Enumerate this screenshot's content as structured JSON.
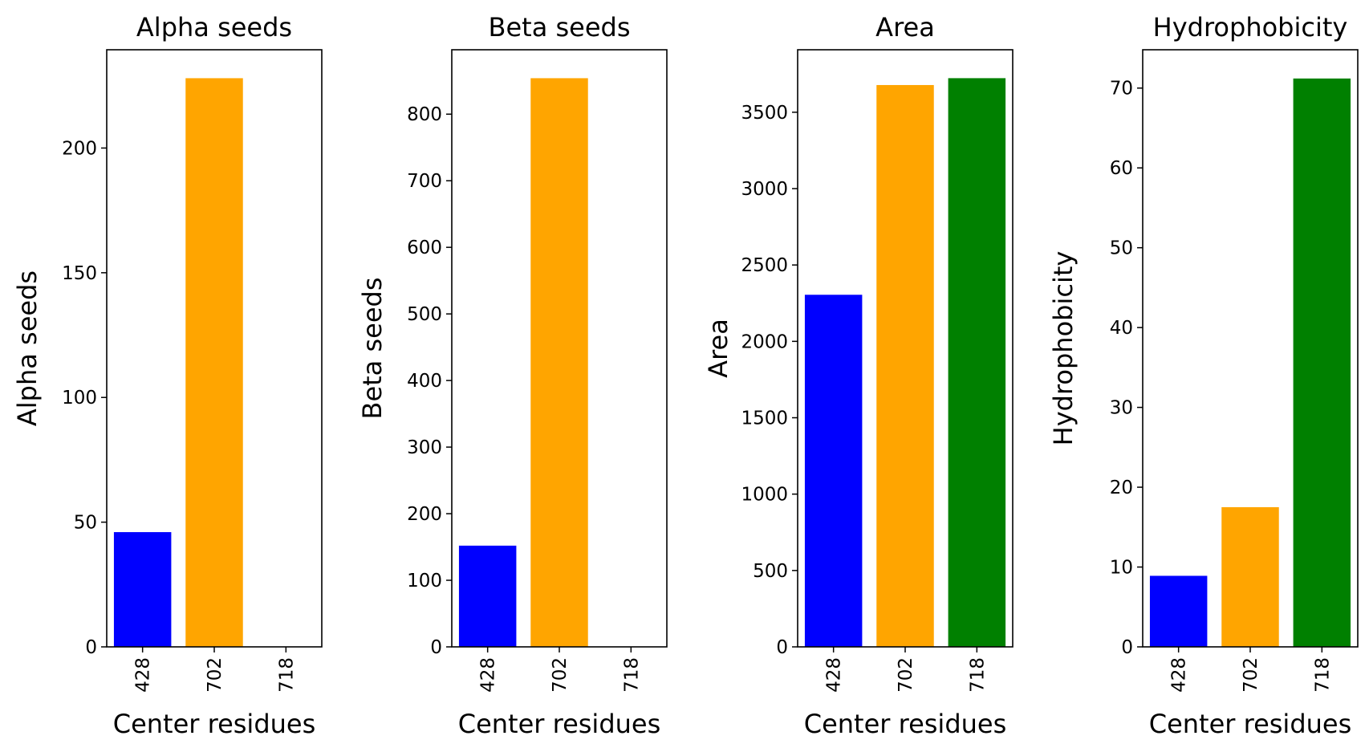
{
  "chart_data": [
    {
      "type": "bar",
      "title": "Alpha seeds",
      "xlabel": "Center residues",
      "ylabel": "Alpha seeds",
      "categories": [
        "428",
        "702",
        "718"
      ],
      "values": [
        46,
        228,
        0
      ],
      "colors": [
        "#0000ff",
        "#ffa500",
        "#008000"
      ],
      "ylim": [
        0,
        239.4
      ],
      "yticks": [
        0,
        50,
        100,
        150,
        200
      ],
      "grid": false
    },
    {
      "type": "bar",
      "title": "Beta seeds",
      "xlabel": "Center residues",
      "ylabel": "Beta seeds",
      "categories": [
        "428",
        "702",
        "718"
      ],
      "values": [
        152,
        854,
        0
      ],
      "colors": [
        "#0000ff",
        "#ffa500",
        "#008000"
      ],
      "ylim": [
        0,
        896.7
      ],
      "yticks": [
        0,
        100,
        200,
        300,
        400,
        500,
        600,
        700,
        800
      ],
      "grid": false
    },
    {
      "type": "bar",
      "title": "Area",
      "xlabel": "Center residues",
      "ylabel": "Area",
      "categories": [
        "428",
        "702",
        "718"
      ],
      "values": [
        2305,
        3678,
        3723
      ],
      "colors": [
        "#0000ff",
        "#ffa500",
        "#008000"
      ],
      "ylim": [
        0,
        3909
      ],
      "yticks": [
        0,
        500,
        1000,
        1500,
        2000,
        2500,
        3000,
        3500
      ],
      "grid": false
    },
    {
      "type": "bar",
      "title": "Hydrophobicity",
      "xlabel": "Center residues",
      "ylabel": "Hydrophobicity",
      "categories": [
        "428",
        "702",
        "718"
      ],
      "values": [
        8.9,
        17.5,
        71.2
      ],
      "colors": [
        "#0000ff",
        "#ffa500",
        "#008000"
      ],
      "ylim": [
        0,
        74.8
      ],
      "yticks": [
        0,
        10,
        20,
        30,
        40,
        50,
        60,
        70
      ],
      "grid": false
    }
  ]
}
